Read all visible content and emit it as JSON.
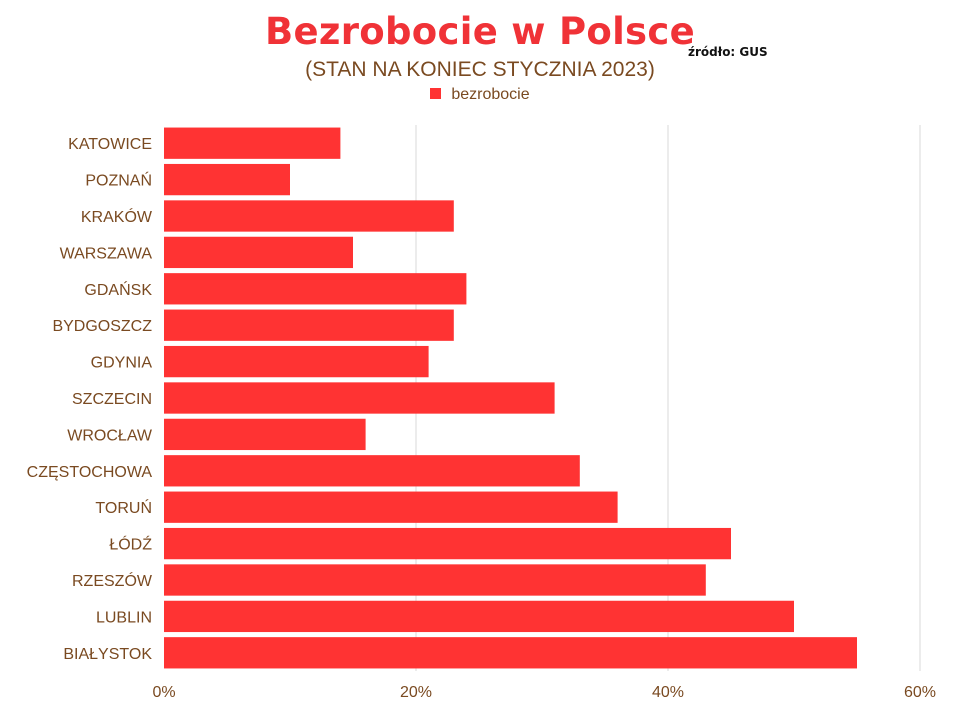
{
  "header": {
    "title": "Bezrobocie w Polsce",
    "source": "źródło: GUS",
    "subtitle": "(STAN NA KONIEC STYCZNIA 2023)"
  },
  "colors": {
    "bar": "#ff3333",
    "title": "#f03237",
    "text": "#7a4a21",
    "grid": "#d9d9d9"
  },
  "chart_data": {
    "type": "bar",
    "orientation": "horizontal",
    "title": "Bezrobocie w Polsce",
    "subtitle": "(STAN NA KONIEC STYCZNIA 2023)",
    "categories": [
      "KATOWICE",
      "POZNAŃ",
      "KRAKÓW",
      "WARSZAWA",
      "GDAŃSK",
      "BYDGOSZCZ",
      "GDYNIA",
      "SZCZECIN",
      "WROCŁAW",
      "CZĘSTOCHOWA",
      "TORUŃ",
      "ŁÓDŹ",
      "RZESZÓW",
      "LUBLIN",
      "BIAŁYSTOK"
    ],
    "series": [
      {
        "name": "bezrobocie",
        "values": [
          14,
          10,
          23,
          15,
          24,
          23,
          21,
          31,
          16,
          33,
          36,
          45,
          43,
          50,
          55
        ]
      }
    ],
    "xlim": [
      0,
      60
    ],
    "xticks": [
      "0%",
      "20%",
      "40%",
      "60%"
    ],
    "xtick_values": [
      0,
      20,
      40,
      60
    ],
    "grid": "vertical",
    "legend": "top-center"
  }
}
